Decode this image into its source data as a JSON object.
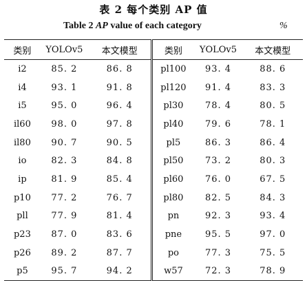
{
  "title_cn": "表 2   每个类别 AP 值",
  "title_en_prefix": "Table 2   ",
  "title_en_ap": "AP",
  "title_en_suffix": " value of each category",
  "unit": "%",
  "headers": [
    "类别",
    "YOLOv5",
    "本文模型",
    "类别",
    "YOLOv5",
    "本文模型"
  ],
  "rows": [
    [
      "i2",
      "85. 2",
      "86. 8",
      "pl100",
      "93. 4",
      "88. 6"
    ],
    [
      "i4",
      "93. 1",
      "91. 8",
      "pl120",
      "91. 4",
      "83. 3"
    ],
    [
      "i5",
      "95. 0",
      "96. 4",
      "pl30",
      "78. 4",
      "80. 5"
    ],
    [
      "il60",
      "98. 0",
      "97. 8",
      "pl40",
      "79. 6",
      "78. 1"
    ],
    [
      "il80",
      "90. 7",
      "90. 5",
      "pl5",
      "86. 3",
      "86. 4"
    ],
    [
      "io",
      "82. 3",
      "84. 8",
      "pl50",
      "73. 2",
      "80. 3"
    ],
    [
      "ip",
      "81. 9",
      "85. 4",
      "pl60",
      "76. 0",
      "67. 5"
    ],
    [
      "p10",
      "77. 2",
      "76. 7",
      "pl80",
      "82. 5",
      "84. 3"
    ],
    [
      "pll",
      "77. 9",
      "81. 4",
      "pn",
      "92. 3",
      "93. 4"
    ],
    [
      "p23",
      "87. 0",
      "83. 6",
      "pne",
      "95. 5",
      "97. 0"
    ],
    [
      "p26",
      "89. 2",
      "87. 7",
      "po",
      "77. 3",
      "75. 5"
    ],
    [
      "p5",
      "95. 7",
      "94. 2",
      "w57",
      "72. 3",
      "78. 9"
    ]
  ]
}
